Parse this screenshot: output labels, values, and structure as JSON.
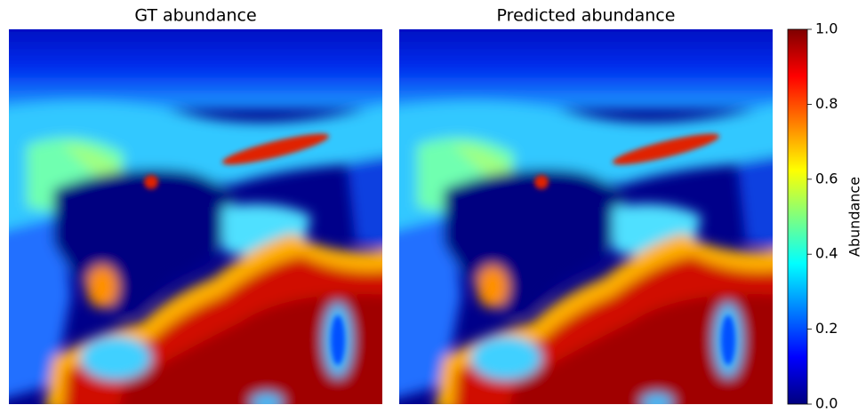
{
  "chart_data": [
    {
      "type": "heatmap",
      "title": "GT abundance",
      "colormap": "jet"
    },
    {
      "type": "heatmap",
      "title": "Predicted abundance",
      "colormap": "jet"
    },
    {
      "type": "colorbar",
      "label": "Abundance",
      "colormap": "jet",
      "ylim": [
        0,
        1
      ],
      "yticks": [
        {
          "value": 0,
          "label": "0.0"
        },
        0.2,
        0.4,
        0.6,
        0.8,
        {
          "value": 1,
          "label": "1.0"
        }
      ]
    }
  ]
}
